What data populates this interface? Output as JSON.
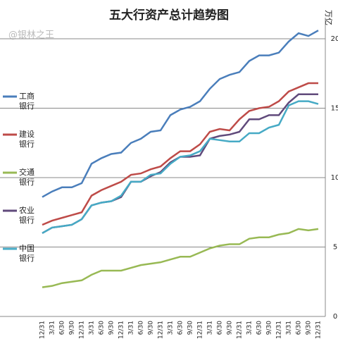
{
  "chart_data": {
    "type": "line",
    "title": "五大行资产总计趋势图",
    "watermark": "@银林之王",
    "y_axis_label": "万亿",
    "categories": [
      "12/31",
      "3/31",
      "6/30",
      "9/30",
      "12/31",
      "3/31",
      "6/30",
      "9/30",
      "12/31",
      "3/31",
      "6/30",
      "9/30",
      "12/31",
      "3/31",
      "6/30",
      "9/30",
      "12/31",
      "3/31",
      "6/30",
      "9/30",
      "12/31",
      "3/31",
      "6/30",
      "9/30",
      "12/31",
      "3/31",
      "6/30",
      "9/30",
      "12/31"
    ],
    "series": [
      {
        "name": "工商银行",
        "color": "#4a7ebb",
        "values": [
          8.6,
          9.0,
          9.3,
          9.3,
          9.6,
          11.0,
          11.4,
          11.7,
          11.8,
          12.5,
          12.8,
          13.3,
          13.4,
          14.5,
          14.9,
          15.1,
          15.5,
          16.4,
          17.1,
          17.4,
          17.6,
          18.4,
          18.8,
          18.8,
          19.0,
          19.8,
          20.4,
          20.2,
          20.6
        ]
      },
      {
        "name": "建设银行",
        "color": "#be4b48",
        "values": [
          6.6,
          6.9,
          7.1,
          7.3,
          7.5,
          8.7,
          9.1,
          9.4,
          9.7,
          10.2,
          10.3,
          10.6,
          10.8,
          11.4,
          11.9,
          11.9,
          12.4,
          13.3,
          13.5,
          13.4,
          14.2,
          14.8,
          15.0,
          15.1,
          15.5,
          16.2,
          16.5,
          16.8,
          16.8
        ]
      },
      {
        "name": "交通银行",
        "color": "#98b954",
        "values": [
          2.1,
          2.2,
          2.4,
          2.5,
          2.6,
          3.0,
          3.3,
          3.3,
          3.3,
          3.5,
          3.7,
          3.8,
          3.9,
          4.1,
          4.3,
          4.3,
          4.6,
          4.9,
          5.1,
          5.2,
          5.2,
          5.6,
          5.7,
          5.7,
          5.9,
          6.0,
          6.3,
          6.2,
          6.3
        ]
      },
      {
        "name": "农业银行",
        "color": "#604a7b",
        "values": [
          6.0,
          6.4,
          6.5,
          6.6,
          7.0,
          8.0,
          8.2,
          8.3,
          8.6,
          9.7,
          9.7,
          10.1,
          10.4,
          11.1,
          11.5,
          11.5,
          11.6,
          12.8,
          13.0,
          13.1,
          13.3,
          14.2,
          14.2,
          14.5,
          14.5,
          15.4,
          16.0,
          16.0,
          16.0
        ]
      },
      {
        "name": "中国银行",
        "color": "#46aac5",
        "values": [
          6.0,
          6.4,
          6.5,
          6.6,
          7.0,
          8.0,
          8.2,
          8.3,
          8.7,
          9.7,
          9.7,
          10.2,
          10.3,
          11.0,
          11.5,
          11.6,
          11.9,
          12.8,
          12.7,
          12.6,
          12.6,
          13.2,
          13.2,
          13.6,
          13.8,
          15.2,
          15.5,
          15.5,
          15.3
        ]
      }
    ],
    "ylim": [
      0,
      20
    ],
    "yticks": [
      0,
      5,
      10,
      15,
      20
    ],
    "grid": true
  }
}
